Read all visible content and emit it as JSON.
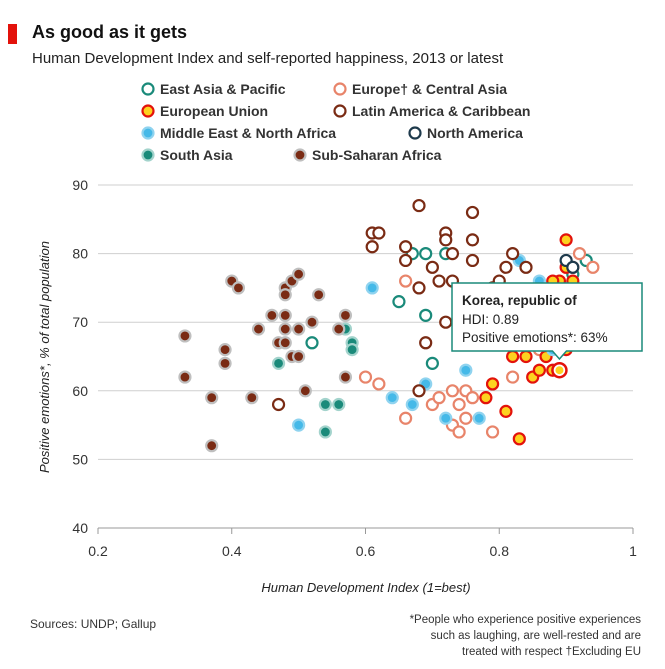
{
  "header": {
    "title": "As good as it gets",
    "subtitle": "Human Development Index and self-reported happiness, 2013 or latest"
  },
  "footer": {
    "sources": "Sources: UNDP; Gallup",
    "note_lines": [
      "*People who experience positive experiences",
      "such as laughing, are well-rested and are",
      "treated with respect †Excluding EU"
    ]
  },
  "chart_data": {
    "type": "scatter",
    "xlabel": "Human Development Index (1=best)",
    "ylabel": "Positive emotions*, % of total population",
    "xlim": [
      0.2,
      1.0
    ],
    "ylim": [
      40,
      90
    ],
    "xticks": [
      0.2,
      0.4,
      0.6,
      0.8,
      1.0
    ],
    "xtick_labels": [
      "0.2",
      "0.4",
      "0.6",
      "0.8",
      "1"
    ],
    "yticks": [
      40,
      50,
      60,
      70,
      80,
      90
    ],
    "grid": "horizontal",
    "legend_position": "top",
    "series": [
      {
        "name": "East Asia & Pacific",
        "fill": "#ffffff",
        "stroke": "#1a8a7a",
        "points": [
          [
            0.52,
            67
          ],
          [
            0.67,
            80
          ],
          [
            0.69,
            80
          ],
          [
            0.72,
            80
          ],
          [
            0.7,
            64
          ],
          [
            0.75,
            71
          ],
          [
            0.69,
            71
          ],
          [
            0.65,
            73
          ],
          [
            0.93,
            79
          ],
          [
            0.91,
            77
          ]
        ]
      },
      {
        "name": "Europe† & Central Asia",
        "fill": "#ffffff",
        "stroke": "#e8846a",
        "points": [
          [
            0.6,
            62
          ],
          [
            0.62,
            61
          ],
          [
            0.66,
            56
          ],
          [
            0.66,
            76
          ],
          [
            0.7,
            58
          ],
          [
            0.71,
            59
          ],
          [
            0.73,
            55
          ],
          [
            0.74,
            54
          ],
          [
            0.75,
            60
          ],
          [
            0.76,
            59
          ],
          [
            0.74,
            58
          ],
          [
            0.79,
            61
          ],
          [
            0.79,
            54
          ],
          [
            0.82,
            62
          ],
          [
            0.86,
            66
          ],
          [
            0.91,
            78
          ],
          [
            0.92,
            80
          ],
          [
            0.94,
            78
          ],
          [
            0.75,
            56
          ],
          [
            0.73,
            60
          ]
        ]
      },
      {
        "name": "European Union",
        "fill": "#fdd21f",
        "stroke": "#e3120b",
        "points": [
          [
            0.78,
            59
          ],
          [
            0.79,
            61
          ],
          [
            0.81,
            57
          ],
          [
            0.83,
            53
          ],
          [
            0.84,
            65
          ],
          [
            0.85,
            62
          ],
          [
            0.86,
            63
          ],
          [
            0.87,
            65
          ],
          [
            0.88,
            63
          ],
          [
            0.89,
            76
          ],
          [
            0.9,
            82
          ],
          [
            0.9,
            78
          ],
          [
            0.91,
            76
          ],
          [
            0.89,
            69
          ],
          [
            0.9,
            66
          ],
          [
            0.88,
            76
          ],
          [
            0.82,
            65
          ]
        ]
      },
      {
        "name": "Middle East & North Africa",
        "fill": "#45b9e8",
        "stroke": "#8fd3ef",
        "points": [
          [
            0.5,
            55
          ],
          [
            0.61,
            75
          ],
          [
            0.64,
            59
          ],
          [
            0.67,
            58
          ],
          [
            0.69,
            61
          ],
          [
            0.72,
            56
          ],
          [
            0.75,
            63
          ],
          [
            0.77,
            56
          ],
          [
            0.83,
            79
          ],
          [
            0.84,
            72
          ],
          [
            0.86,
            76
          ],
          [
            0.85,
            72
          ],
          [
            0.88,
            66
          ]
        ]
      },
      {
        "name": "North America",
        "fill": "#ffffff",
        "stroke": "#1e3a4c",
        "points": [
          [
            0.9,
            79
          ],
          [
            0.91,
            78
          ]
        ]
      },
      {
        "name": "South Asia",
        "fill": "#1a8a7a",
        "stroke": "#a3d3cc",
        "points": [
          [
            0.47,
            64
          ],
          [
            0.54,
            58
          ],
          [
            0.54,
            54
          ],
          [
            0.56,
            58
          ],
          [
            0.58,
            67
          ],
          [
            0.58,
            66
          ],
          [
            0.57,
            69
          ]
        ]
      },
      {
        "name": "Latin America & Caribbean",
        "fill": "#ffffff",
        "stroke": "#7a2b14",
        "points": [
          [
            0.47,
            58
          ],
          [
            0.61,
            83
          ],
          [
            0.62,
            83
          ],
          [
            0.61,
            81
          ],
          [
            0.66,
            81
          ],
          [
            0.66,
            79
          ],
          [
            0.68,
            87
          ],
          [
            0.7,
            78
          ],
          [
            0.71,
            76
          ],
          [
            0.72,
            83
          ],
          [
            0.72,
            82
          ],
          [
            0.73,
            80
          ],
          [
            0.76,
            86
          ],
          [
            0.76,
            82
          ],
          [
            0.76,
            79
          ],
          [
            0.77,
            72
          ],
          [
            0.79,
            75
          ],
          [
            0.8,
            76
          ],
          [
            0.81,
            78
          ],
          [
            0.82,
            80
          ],
          [
            0.84,
            78
          ],
          [
            0.68,
            75
          ],
          [
            0.72,
            70
          ],
          [
            0.69,
            67
          ],
          [
            0.68,
            60
          ],
          [
            0.73,
            76
          ]
        ]
      },
      {
        "name": "Sub-Saharan Africa",
        "fill": "#7a2b14",
        "stroke": "#bfbfbf",
        "points": [
          [
            0.33,
            68
          ],
          [
            0.33,
            62
          ],
          [
            0.37,
            59
          ],
          [
            0.37,
            52
          ],
          [
            0.39,
            66
          ],
          [
            0.39,
            64
          ],
          [
            0.4,
            76
          ],
          [
            0.41,
            75
          ],
          [
            0.43,
            59
          ],
          [
            0.44,
            69
          ],
          [
            0.46,
            71
          ],
          [
            0.47,
            67
          ],
          [
            0.48,
            75
          ],
          [
            0.48,
            74
          ],
          [
            0.48,
            71
          ],
          [
            0.48,
            67
          ],
          [
            0.49,
            65
          ],
          [
            0.49,
            76
          ],
          [
            0.5,
            69
          ],
          [
            0.5,
            65
          ],
          [
            0.5,
            77
          ],
          [
            0.51,
            60
          ],
          [
            0.52,
            70
          ],
          [
            0.53,
            74
          ],
          [
            0.56,
            69
          ],
          [
            0.57,
            71
          ],
          [
            0.57,
            62
          ],
          [
            0.48,
            69
          ]
        ]
      }
    ],
    "highlight": {
      "name": "Korea, republic of",
      "x": 0.89,
      "y": 63,
      "stroke": "#e3120b"
    },
    "tooltip": {
      "title": "Korea, republic of",
      "line1": "HDI: 0.89",
      "line2": "Positive emotions*: 63%",
      "border": "#1a8a7a"
    }
  }
}
